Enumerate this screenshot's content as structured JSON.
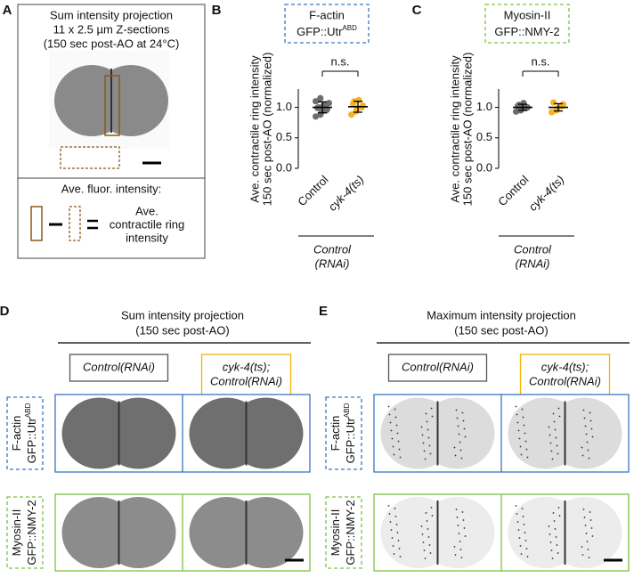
{
  "panel_a": {
    "letter": "A",
    "title_lines": [
      "Sum intensity projection",
      "11 x 2.5 µm Z-sections",
      "(150 sec post-AO at 24°C)"
    ],
    "legend_title": "Ave. fluor. intensity:",
    "result_lines": [
      "Ave.",
      "contractile ring",
      "intensity"
    ]
  },
  "chart_data": [
    {
      "type": "dot",
      "letter": "B",
      "header": {
        "line1": "F-actin",
        "line2": "GFP::Utr",
        "line2_sup": "ABD",
        "color": "#3a75c4"
      },
      "ylabel_lines": [
        "Ave. contractile ring intensity",
        "150 sec post-AO (normalized)"
      ],
      "ylim": [
        0,
        1.3
      ],
      "yticks": [
        {
          "value": 0,
          "label": "0.0"
        },
        {
          "value": 0.5,
          "label": "0.5"
        },
        {
          "value": 1,
          "label": "1.0"
        }
      ],
      "categories": [
        "Control",
        "cyk-4(ts)"
      ],
      "groups": [
        {
          "color": "#6d6d6d",
          "values": [
            0.85,
            0.88,
            0.92,
            0.95,
            0.97,
            0.99,
            1.0,
            1.02,
            1.04,
            1.07,
            1.1,
            1.15
          ],
          "mean": 1.0,
          "sd": 0.09
        },
        {
          "color": "#f5b324",
          "values": [
            0.88,
            0.93,
            0.98,
            1.0,
            1.03,
            1.06,
            1.1,
            1.12
          ],
          "mean": 1.01,
          "sd": 0.09
        }
      ],
      "annotation": "n.s.",
      "group_label": [
        "Control",
        "(RNAi)"
      ]
    },
    {
      "type": "dot",
      "letter": "C",
      "header": {
        "line1": "Myosin-II",
        "line2": "GFP::NMY-2",
        "color": "#7cc242"
      },
      "ylabel_lines": [
        "Ave. contractile ring intensity",
        "150 sec post-AO (normalized)"
      ],
      "ylim": [
        0,
        1.3
      ],
      "yticks": [
        {
          "value": 0,
          "label": "0.0"
        },
        {
          "value": 0.5,
          "label": "0.5"
        },
        {
          "value": 1,
          "label": "1.0"
        }
      ],
      "categories": [
        "Control",
        "cyk-4(ts)"
      ],
      "groups": [
        {
          "color": "#6d6d6d",
          "values": [
            0.93,
            0.95,
            0.97,
            0.99,
            1.0,
            1.02,
            1.04,
            1.07
          ],
          "mean": 1.0,
          "sd": 0.05
        },
        {
          "color": "#f5b324",
          "values": [
            0.92,
            0.95,
            0.98,
            1.02,
            1.05,
            1.08
          ],
          "mean": 1.0,
          "sd": 0.06
        }
      ],
      "annotation": "n.s.",
      "group_label": [
        "Control",
        "(RNAi)"
      ]
    }
  ],
  "panel_d": {
    "letter": "D",
    "title_lines": [
      "Sum intensity projection",
      "(150 sec post-AO)"
    ],
    "column_headers": [
      [
        "Control(RNAi)"
      ],
      [
        "cyk-4(ts);",
        "Control(RNAi)"
      ]
    ],
    "row_labels": [
      {
        "lines": [
          "F-actin",
          "GFP::Utr"
        ],
        "sup": "ABD"
      },
      {
        "lines": [
          "Myosin-II",
          "GFP::NMY-2"
        ]
      }
    ]
  },
  "panel_e": {
    "letter": "E",
    "title_lines": [
      "Maximum intensity projection",
      "(150 sec post-AO)"
    ],
    "column_headers": [
      [
        "Control(RNAi)"
      ],
      [
        "cyk-4(ts);",
        "Control(RNAi)"
      ]
    ],
    "row_labels": [
      {
        "lines": [
          "F-actin",
          "GFP::Utr"
        ],
        "sup": "ABD"
      },
      {
        "lines": [
          "Myosin-II",
          "GFP::NMY-2"
        ]
      }
    ]
  }
}
